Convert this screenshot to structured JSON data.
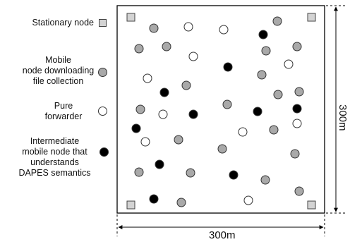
{
  "legend": {
    "stationary": "Stationary node",
    "mobile": [
      "Mobile",
      "node downloading",
      "file collection"
    ],
    "pure": [
      "Pure",
      "forwarder"
    ],
    "intermediate": [
      "Intermediate",
      "mobile node that",
      "understands",
      "DAPES semantics"
    ]
  },
  "dimensions": {
    "width": "300m",
    "height": "300m"
  },
  "node_types": {
    "stationary": {
      "fill": "#d3d3d3"
    },
    "mobile": {
      "fill": "#a9a9a9"
    },
    "pure": {
      "fill": "#ffffff"
    },
    "intermediate": {
      "fill": "#000000"
    }
  }
}
